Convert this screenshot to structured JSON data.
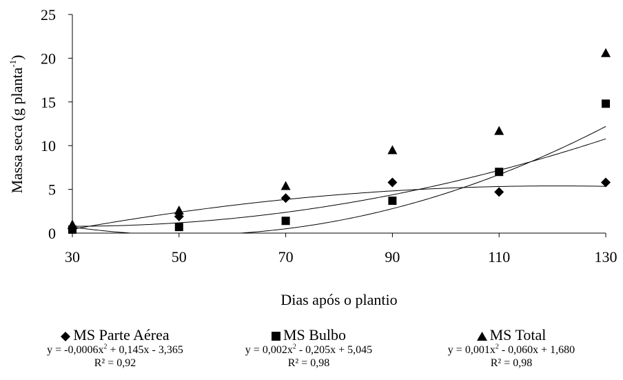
{
  "chart_data": {
    "type": "scatter",
    "xlabel": "Dias após o plantio",
    "ylabel_main": "Massa seca (g planta",
    "ylabel_sup": "-1",
    "ylabel_close": ")",
    "x_ticks": [
      "30",
      "50",
      "70",
      "90",
      "110",
      "130"
    ],
    "y_ticks": [
      "0",
      "5",
      "10",
      "15",
      "20",
      "25"
    ],
    "xlim": [
      30,
      130
    ],
    "ylim": [
      0,
      25
    ],
    "grid": false,
    "legend_position": "bottom",
    "series": [
      {
        "name": "MS Parte Aérea",
        "marker": "diamond",
        "color": "#000000",
        "x": [
          30,
          50,
          70,
          90,
          110,
          130
        ],
        "y": [
          0.5,
          1.9,
          4.0,
          5.8,
          4.7,
          5.8
        ],
        "trend": {
          "a": -0.0006,
          "b": 0.145,
          "c": -3.365
        },
        "equation": {
          "p1": "y = -0,0006x",
          "p2": "2",
          "p3": " + 0,145x - 3,365"
        },
        "r2": "R² = 0,92"
      },
      {
        "name": "MS Bulbo",
        "marker": "square",
        "color": "#000000",
        "x": [
          30,
          50,
          70,
          90,
          110,
          130
        ],
        "y": [
          0.4,
          0.7,
          1.4,
          3.7,
          7.0,
          14.8
        ],
        "trend": {
          "a": 0.002,
          "b": -0.205,
          "c": 5.045
        },
        "equation": {
          "p1": "y = 0,002x",
          "p2": "2",
          "p3": " - 0,205x + 5,045"
        },
        "r2": "R² = 0,98"
      },
      {
        "name": "MS Total",
        "marker": "triangle",
        "color": "#000000",
        "x": [
          30,
          50,
          70,
          90,
          110,
          130
        ],
        "y": [
          1.0,
          2.6,
          5.4,
          9.5,
          11.7,
          20.6
        ],
        "trend": {
          "a": 0.001,
          "b": -0.06,
          "c": 1.68
        },
        "equation": {
          "p1": "y = 0,001x",
          "p2": "2",
          "p3": " - 0,060x + 1,680"
        },
        "r2": "R² = 0,98"
      }
    ]
  }
}
